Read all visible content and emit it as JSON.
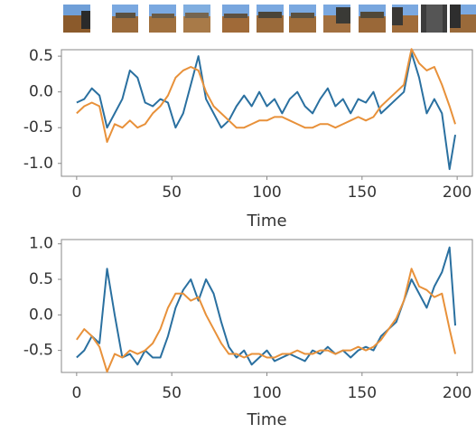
{
  "chart_data": [
    {
      "type": "line",
      "xlabel": "Time",
      "x": [
        0,
        4,
        8,
        12,
        16,
        20,
        24,
        28,
        32,
        36,
        40,
        44,
        48,
        52,
        56,
        60,
        64,
        68,
        72,
        76,
        80,
        84,
        88,
        92,
        96,
        100,
        104,
        108,
        112,
        116,
        120,
        124,
        128,
        132,
        136,
        140,
        144,
        148,
        152,
        156,
        160,
        164,
        168,
        172,
        176,
        180,
        184,
        188,
        192,
        196,
        199
      ],
      "xlim": [
        -8,
        208
      ],
      "ylim": [
        -1.18,
        0.59
      ],
      "xticks": [
        0,
        50,
        100,
        150,
        200
      ],
      "yticks": [
        {
          "value": 0.5,
          "label": "0.5"
        },
        {
          "value": 0,
          "label": "0.0"
        },
        {
          "value": -0.5,
          "label": "-0.5"
        },
        {
          "value": -1,
          "label": "-1.0"
        }
      ],
      "series": [
        {
          "color": "#2a70a0",
          "values": [
            -0.15,
            -0.1,
            0.05,
            -0.05,
            -0.5,
            -0.3,
            -0.1,
            0.3,
            0.2,
            -0.15,
            -0.2,
            -0.1,
            -0.15,
            -0.5,
            -0.3,
            0.1,
            0.5,
            -0.1,
            -0.3,
            -0.5,
            -0.4,
            -0.2,
            -0.05,
            -0.2,
            0.0,
            -0.2,
            -0.1,
            -0.3,
            -0.1,
            0.0,
            -0.2,
            -0.3,
            -0.1,
            0.05,
            -0.2,
            -0.1,
            -0.3,
            -0.1,
            -0.15,
            0.0,
            -0.3,
            -0.2,
            -0.1,
            0.0,
            0.55,
            0.2,
            -0.3,
            -0.1,
            -0.3,
            -1.08,
            -0.6
          ]
        },
        {
          "color": "#e8913a",
          "values": [
            -0.3,
            -0.2,
            -0.15,
            -0.2,
            -0.7,
            -0.45,
            -0.5,
            -0.4,
            -0.5,
            -0.45,
            -0.3,
            -0.2,
            -0.05,
            0.2,
            0.3,
            0.35,
            0.3,
            0.0,
            -0.2,
            -0.3,
            -0.4,
            -0.5,
            -0.5,
            -0.45,
            -0.4,
            -0.4,
            -0.35,
            -0.35,
            -0.4,
            -0.45,
            -0.5,
            -0.5,
            -0.45,
            -0.45,
            -0.5,
            -0.45,
            -0.4,
            -0.35,
            -0.4,
            -0.35,
            -0.2,
            -0.1,
            0.0,
            0.1,
            0.6,
            0.4,
            0.3,
            0.35,
            0.1,
            -0.2,
            -0.45
          ]
        }
      ]
    },
    {
      "type": "line",
      "xlabel": "Time",
      "x": [
        0,
        4,
        8,
        12,
        16,
        20,
        24,
        28,
        32,
        36,
        40,
        44,
        48,
        52,
        56,
        60,
        64,
        68,
        72,
        76,
        80,
        84,
        88,
        92,
        96,
        100,
        104,
        108,
        112,
        116,
        120,
        124,
        128,
        132,
        136,
        140,
        144,
        148,
        152,
        156,
        160,
        164,
        168,
        172,
        176,
        180,
        184,
        188,
        192,
        196,
        199
      ],
      "xlim": [
        -8,
        208
      ],
      "ylim": [
        -0.81,
        1.06
      ],
      "xticks": [
        0,
        50,
        100,
        150,
        200
      ],
      "yticks": [
        {
          "value": 1,
          "label": "1.0"
        },
        {
          "value": 0.5,
          "label": "0.5"
        },
        {
          "value": 0,
          "label": "0.0"
        },
        {
          "value": -0.5,
          "label": "-0.5"
        }
      ],
      "series": [
        {
          "color": "#2a70a0",
          "values": [
            -0.6,
            -0.5,
            -0.3,
            -0.4,
            0.65,
            0.0,
            -0.6,
            -0.55,
            -0.7,
            -0.5,
            -0.6,
            -0.6,
            -0.3,
            0.1,
            0.35,
            0.5,
            0.2,
            0.5,
            0.3,
            -0.1,
            -0.45,
            -0.6,
            -0.5,
            -0.7,
            -0.6,
            -0.5,
            -0.65,
            -0.6,
            -0.55,
            -0.6,
            -0.65,
            -0.5,
            -0.55,
            -0.45,
            -0.55,
            -0.5,
            -0.6,
            -0.5,
            -0.45,
            -0.5,
            -0.3,
            -0.2,
            -0.1,
            0.2,
            0.5,
            0.3,
            0.1,
            0.4,
            0.6,
            0.95,
            -0.15
          ]
        },
        {
          "color": "#e8913a",
          "values": [
            -0.35,
            -0.2,
            -0.3,
            -0.45,
            -0.8,
            -0.55,
            -0.6,
            -0.5,
            -0.55,
            -0.5,
            -0.4,
            -0.2,
            0.1,
            0.3,
            0.3,
            0.2,
            0.25,
            0.0,
            -0.2,
            -0.4,
            -0.55,
            -0.55,
            -0.6,
            -0.55,
            -0.55,
            -0.6,
            -0.6,
            -0.55,
            -0.55,
            -0.5,
            -0.55,
            -0.55,
            -0.5,
            -0.5,
            -0.55,
            -0.5,
            -0.5,
            -0.45,
            -0.5,
            -0.45,
            -0.35,
            -0.2,
            -0.05,
            0.2,
            0.65,
            0.4,
            0.35,
            0.25,
            0.3,
            -0.2,
            -0.55
          ]
        }
      ]
    }
  ]
}
